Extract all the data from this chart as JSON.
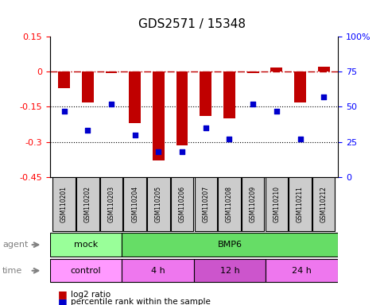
{
  "title": "GDS2571 / 15348",
  "samples": [
    "GSM110201",
    "GSM110202",
    "GSM110203",
    "GSM110204",
    "GSM110205",
    "GSM110206",
    "GSM110207",
    "GSM110208",
    "GSM110209",
    "GSM110210",
    "GSM110211",
    "GSM110212"
  ],
  "log2_ratio": [
    -0.07,
    -0.13,
    -0.005,
    -0.22,
    -0.38,
    -0.315,
    -0.19,
    -0.2,
    -0.005,
    0.018,
    -0.13,
    0.02
  ],
  "percentile": [
    47,
    33,
    52,
    30,
    18,
    18,
    35,
    27,
    52,
    47,
    27,
    57
  ],
  "bar_color": "#c00000",
  "dot_color": "#0000cc",
  "ylim_left": [
    -0.45,
    0.15
  ],
  "ylim_right": [
    0,
    100
  ],
  "yticks_left": [
    0.15,
    0,
    -0.15,
    -0.3,
    -0.45
  ],
  "yticks_right": [
    100,
    75,
    50,
    25,
    0
  ],
  "dotted_lines": [
    -0.15,
    -0.3
  ],
  "agent_groups": [
    {
      "label": "mock",
      "start": 0,
      "end": 3,
      "color": "#99ff99"
    },
    {
      "label": "BMP6",
      "start": 3,
      "end": 12,
      "color": "#66dd66"
    }
  ],
  "time_groups": [
    {
      "label": "control",
      "start": 0,
      "end": 3,
      "color": "#ff99ff"
    },
    {
      "label": "4 h",
      "start": 3,
      "end": 6,
      "color": "#ee77ee"
    },
    {
      "label": "12 h",
      "start": 6,
      "end": 9,
      "color": "#cc55cc"
    },
    {
      "label": "24 h",
      "start": 9,
      "end": 12,
      "color": "#ee77ee"
    }
  ],
  "legend_items": [
    {
      "label": "log2 ratio",
      "color": "#c00000"
    },
    {
      "label": "percentile rank within the sample",
      "color": "#0000cc"
    }
  ],
  "background_color": "#ffffff",
  "sample_box_color": "#cccccc"
}
